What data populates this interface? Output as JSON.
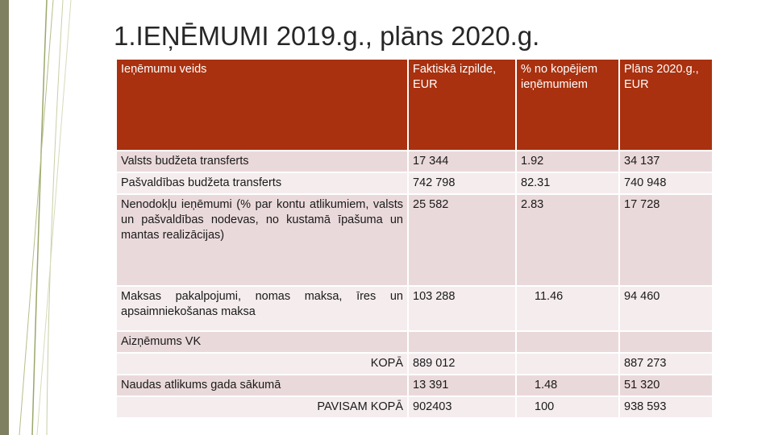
{
  "slide": {
    "title": "1.IEŅĒMUMI 2019.g., plāns 2020.g."
  },
  "table": {
    "headers": [
      "Ieņēmumu veids",
      "Faktiskā izpilde, EUR",
      "% no kopējiem ieņēmumiem",
      "Plāns 2020.g., EUR"
    ],
    "rows": [
      [
        "Valsts budžeta transferts",
        "17 344",
        "1.92",
        "34 137"
      ],
      [
        "Pašvaldības budžeta transferts",
        "742 798",
        "82.31",
        "740 948"
      ],
      [
        "Nenodokļu ieņēmumi (% par kontu atlikumiem, valsts un pašvaldības nodevas, no kustamā īpašuma un mantas realizācijas)",
        "25 582",
        "2.83",
        "17 728"
      ],
      [
        "Maksas pakalpojumi, nomas maksa, īres un apsaimniekošanas maksa",
        "103 288",
        "11.46",
        "94 460"
      ],
      [
        "Aizņēmums VK",
        "",
        "",
        ""
      ],
      [
        "KOPĀ",
        "889 012",
        "",
        "887 273"
      ],
      [
        "Naudas atlikums gada sākumā",
        "13 391",
        "1.48",
        "51 320"
      ],
      [
        "PAVISAM KOPĀ",
        "902403",
        "100",
        "938 593"
      ]
    ]
  }
}
